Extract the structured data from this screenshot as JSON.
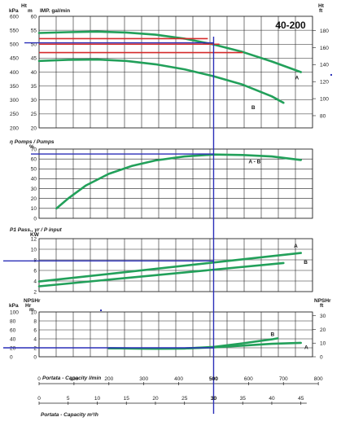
{
  "chart_data": [
    {
      "type": "line",
      "id": "head",
      "title": "40-200",
      "xlabel": "",
      "left_unit_label": "kPa",
      "left_axis_label": "Ht",
      "left_unit2_label": "m",
      "left_sub_label": "IMP. gal/min",
      "right_axis_label": "Ht",
      "right_unit_label": "ft",
      "ylim": [
        20,
        60
      ],
      "y_ticks": [
        20,
        25,
        30,
        35,
        40,
        45,
        50,
        55,
        60
      ],
      "kpa_ticks": [
        "200",
        "250",
        "300",
        "350",
        "400",
        "450",
        "500",
        "550",
        "600"
      ],
      "ft_ticks": [
        "80",
        "100",
        "120",
        "140",
        "160",
        "180"
      ],
      "xlim": [
        0,
        47
      ],
      "grid": true,
      "series": [
        {
          "name": "A",
          "x": [
            0,
            5,
            10,
            15,
            20,
            25,
            30,
            35,
            40,
            45
          ],
          "y": [
            54,
            54.3,
            54.5,
            54.2,
            53.4,
            52,
            49.9,
            47.2,
            43.8,
            40
          ]
        },
        {
          "name": "B",
          "x": [
            0,
            5,
            10,
            15,
            20,
            25,
            30,
            35,
            40,
            42
          ],
          "y": [
            44,
            44.4,
            44.5,
            44,
            42.8,
            41,
            38.5,
            35.5,
            31.3,
            29
          ]
        }
      ],
      "red_lines_y": [
        52,
        50,
        47
      ],
      "duty_head": 50.5
    },
    {
      "type": "line",
      "id": "efficiency",
      "axis_label": "η Pomps / Pumps",
      "unit_label": "%",
      "ylim": [
        0,
        70
      ],
      "y_ticks": [
        0,
        10,
        20,
        30,
        40,
        50,
        60,
        70
      ],
      "xlim": [
        0,
        47
      ],
      "grid": true,
      "series": [
        {
          "name": "A - B",
          "x": [
            3,
            5,
            8,
            12,
            16,
            20,
            25,
            30,
            35,
            40,
            45
          ],
          "y": [
            10,
            20,
            33,
            45,
            53,
            58.5,
            62.5,
            64.5,
            64,
            62.5,
            59
          ]
        }
      ],
      "duty_efficiency": 65
    },
    {
      "type": "line",
      "id": "power",
      "axis_label": "P1 Pass., γr / P input",
      "unit_label": "KW",
      "ylim": [
        2,
        12
      ],
      "y_ticks": [
        2,
        4,
        6,
        8,
        10,
        12
      ],
      "xlim": [
        0,
        47
      ],
      "grid": true,
      "series": [
        {
          "name": "A",
          "x": [
            0,
            45
          ],
          "y": [
            3.9,
            9.3
          ]
        },
        {
          "name": "B",
          "x": [
            0,
            42
          ],
          "y": [
            3.0,
            7.4
          ]
        }
      ],
      "duty_power": 7.8
    },
    {
      "type": "line",
      "id": "npsh",
      "left_axis_label": "kPa",
      "left_unit2_label": "Hr",
      "right_axis_label": "NPSHr",
      "right_unit_label": "ft",
      "left2_axis_label": "NPSHr",
      "left2_unit_label": "m",
      "ylim": [
        0,
        10
      ],
      "y_ticks": [
        0,
        2,
        4,
        6,
        8,
        10
      ],
      "kpa_ticks": [
        "0",
        "20",
        "40",
        "60",
        "80",
        "100"
      ],
      "ft_ticks": [
        "0",
        "10",
        "20",
        "30"
      ],
      "xlim": [
        0,
        47
      ],
      "grid": true,
      "series": [
        {
          "name": "A",
          "x": [
            12,
            20,
            25,
            30,
            35,
            40,
            45
          ],
          "y": [
            1.9,
            1.8,
            1.85,
            2.1,
            2.5,
            2.9,
            3.1
          ]
        },
        {
          "name": "B",
          "x": [
            12,
            20,
            25,
            30,
            35,
            40,
            41
          ],
          "y": [
            1.9,
            1.8,
            1.85,
            2.2,
            3.0,
            3.9,
            4.1
          ]
        }
      ],
      "duty_npsh": 2.0
    }
  ],
  "x_axes": {
    "lmin_label": "Portata - Capacity l/min",
    "lmin_ticks": [
      "0",
      "100",
      "200",
      "300",
      "400",
      "500",
      "600",
      "700",
      "800"
    ],
    "lmin_values": [
      0,
      100,
      200,
      300,
      400,
      500,
      600,
      700,
      800
    ],
    "m3h_label": "Portata - Capacity m³/h",
    "m3h_ticks": [
      "0",
      "5",
      "10",
      "15",
      "20",
      "25",
      "30",
      "35",
      "40",
      "45"
    ],
    "m3h_values": [
      0,
      5,
      10,
      15,
      20,
      25,
      30,
      35,
      40,
      45
    ],
    "duty_m3h": 30,
    "duty_lmin_label": "500",
    "duty_m3h_label": "30"
  },
  "colors": {
    "curve": "#22a05a",
    "duty": "#2a2fb8",
    "red": "#d42a2a",
    "grid": "#222222"
  }
}
